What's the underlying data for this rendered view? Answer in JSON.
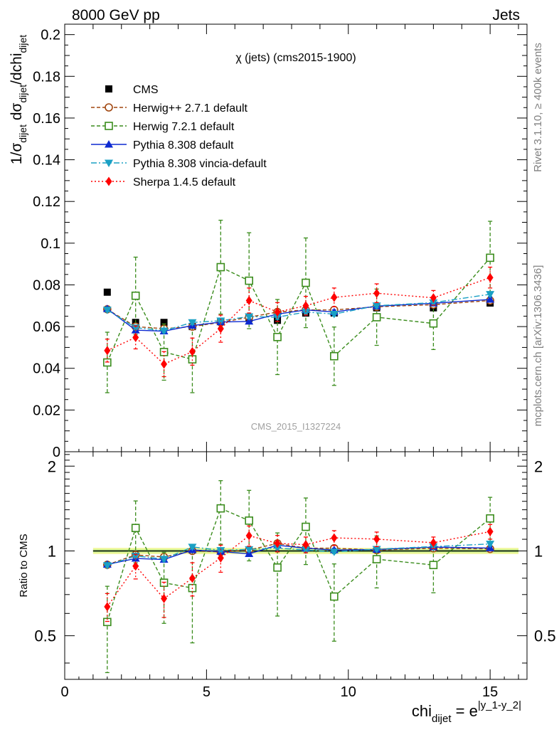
{
  "header": {
    "left": "8000 GeV pp",
    "right": "Jets"
  },
  "side": {
    "rivet": "Rivet 3.1.10, ≥ 400k events",
    "mcplots": "mcplots.cern.ch [arXiv:1306.3436]"
  },
  "main_plot": {
    "title": "χ (jets) (cms2015-1900)",
    "watermark": "CMS_2015_I1327224",
    "ylabel": {
      "prefix": "1/σ",
      "sub1": "dijet",
      "mid": " dσ",
      "sub2": "dijet",
      "suffix": "/dchi",
      "sub3": "dijet"
    },
    "ylim": [
      0,
      0.205
    ],
    "yticks": [
      "0",
      "0.02",
      "0.04",
      "0.06",
      "0.08",
      "0.1",
      "0.12",
      "0.14",
      "0.16",
      "0.18",
      "0.2"
    ]
  },
  "ratio_plot": {
    "ylabel": "Ratio to CMS",
    "ylim": [
      0.35,
      2.25
    ],
    "yticks": [
      "0.5",
      "1",
      "2"
    ]
  },
  "xaxis": {
    "label_base": "chi",
    "label_sub": "dijet",
    "label_eq": " = e",
    "label_sup": "|y_1-y_2|",
    "xlim": [
      0,
      16.3
    ],
    "xticks": [
      "0",
      "5",
      "10",
      "15"
    ]
  },
  "legend": [
    {
      "key": "cms",
      "label": "CMS"
    },
    {
      "key": "herwigpp",
      "label": "Herwig++ 2.7.1 default"
    },
    {
      "key": "herwig7",
      "label": "Herwig 7.2.1 default"
    },
    {
      "key": "pythia",
      "label": "Pythia 8.308 default"
    },
    {
      "key": "vincia",
      "label": "Pythia 8.308 vincia-default"
    },
    {
      "key": "sherpa",
      "label": "Sherpa 1.4.5 default"
    }
  ],
  "chart_data": {
    "type": "scatter",
    "x": [
      1.5,
      2.5,
      3.5,
      4.5,
      5.5,
      6.5,
      7.5,
      8.5,
      9.5,
      11.0,
      13.0,
      15.0
    ],
    "xerr": [
      0.5,
      0.5,
      0.5,
      0.5,
      0.5,
      0.5,
      0.5,
      0.5,
      0.5,
      1.0,
      1.0,
      1.0
    ],
    "ref_band_halfwidth": 0.025,
    "series": [
      {
        "key": "cms",
        "name": "CMS",
        "color": "#000000",
        "marker": "square",
        "line": "none",
        "y": [
          0.0765,
          0.062,
          0.062,
          0.06,
          0.0625,
          0.064,
          0.063,
          0.0665,
          0.0665,
          0.069,
          0.069,
          0.0713
        ],
        "yerr": [
          0.0005,
          0.0005,
          0.0005,
          0.0005,
          0.0005,
          0.0005,
          0.0005,
          0.0005,
          0.0005,
          0.0005,
          0.0005,
          0.0005
        ]
      },
      {
        "key": "herwigpp",
        "name": "Herwig++ 2.7.1 default",
        "color": "#a0460f",
        "marker": "circle-open",
        "line": "dashed",
        "y": [
          0.0683,
          0.06,
          0.059,
          0.06,
          0.062,
          0.0645,
          0.067,
          0.068,
          0.068,
          0.0695,
          0.0705,
          0.0725
        ],
        "yerr": [
          0.001,
          0.001,
          0.001,
          0.001,
          0.001,
          0.001,
          0.001,
          0.001,
          0.001,
          0.001,
          0.001,
          0.001
        ]
      },
      {
        "key": "herwig7",
        "name": "Herwig 7.2.1 default",
        "color": "#3a8c1c",
        "marker": "square-open",
        "line": "dashed",
        "y": [
          0.0428,
          0.0748,
          0.0478,
          0.0443,
          0.0885,
          0.082,
          0.055,
          0.081,
          0.0458,
          0.0645,
          0.0615,
          0.093
        ],
        "yerr": [
          0.0145,
          0.0185,
          0.0135,
          0.016,
          0.0225,
          0.023,
          0.018,
          0.0215,
          0.014,
          0.0135,
          0.0125,
          0.0175
        ]
      },
      {
        "key": "pythia",
        "name": "Pythia 8.308 default",
        "color": "#0d2ad1",
        "marker": "triangle-up",
        "line": "solid",
        "y": [
          0.0685,
          0.0583,
          0.0578,
          0.0605,
          0.0622,
          0.0625,
          0.066,
          0.068,
          0.067,
          0.0698,
          0.0712,
          0.073
        ],
        "yerr": [
          0.001,
          0.001,
          0.001,
          0.001,
          0.001,
          0.001,
          0.001,
          0.001,
          0.001,
          0.001,
          0.001,
          0.001
        ]
      },
      {
        "key": "vincia",
        "name": "Pythia 8.308 vincia-default",
        "color": "#1aa0c4",
        "marker": "triangle-down",
        "line": "dashdot",
        "y": [
          0.068,
          0.0595,
          0.058,
          0.062,
          0.0628,
          0.0648,
          0.0645,
          0.067,
          0.066,
          0.07,
          0.0715,
          0.0755
        ],
        "yerr": [
          0.001,
          0.001,
          0.001,
          0.001,
          0.001,
          0.001,
          0.001,
          0.001,
          0.001,
          0.001,
          0.001,
          0.001
        ]
      },
      {
        "key": "sherpa",
        "name": "Sherpa 1.4.5 default",
        "color": "#ff0000",
        "marker": "diamond",
        "line": "dotted",
        "y": [
          0.0485,
          0.0548,
          0.042,
          0.048,
          0.059,
          0.0725,
          0.067,
          0.07,
          0.074,
          0.076,
          0.0738,
          0.0835
        ],
        "yerr": [
          0.0055,
          0.0055,
          0.006,
          0.0065,
          0.0065,
          0.006,
          0.0045,
          0.0045,
          0.0045,
          0.0045,
          0.0035,
          0.005
        ]
      }
    ]
  }
}
